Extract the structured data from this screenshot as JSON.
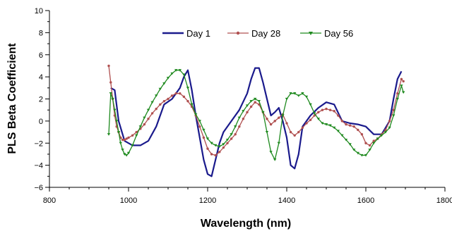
{
  "chart_data": {
    "type": "line",
    "title": "",
    "xlabel": "Wavelength (nm)",
    "ylabel": "PLS Beta Coefficient",
    "xlim": [
      800,
      1800
    ],
    "ylim": [
      -6,
      10
    ],
    "xticks": [
      800,
      1000,
      1200,
      1400,
      1600,
      1800
    ],
    "yticks": [
      -6,
      -4,
      -2,
      0,
      2,
      4,
      6,
      8,
      10
    ],
    "xtick_labels": [
      "800",
      "1000",
      "1200",
      "1400",
      "1600",
      "1800"
    ],
    "ytick_labels": [
      "−6",
      "−4",
      "−2",
      "0",
      "2",
      "4",
      "6",
      "8",
      "10"
    ],
    "grid": false,
    "legend": {
      "placement": "top-right"
    },
    "series": [
      {
        "name": "Day 1",
        "color": "#1a1a8c",
        "marker": "none",
        "x": [
          955,
          965,
          975,
          990,
          1010,
          1030,
          1050,
          1070,
          1090,
          1110,
          1130,
          1140,
          1150,
          1160,
          1170,
          1180,
          1190,
          1200,
          1210,
          1220,
          1230,
          1240,
          1260,
          1280,
          1300,
          1310,
          1320,
          1330,
          1340,
          1350,
          1360,
          1370,
          1380,
          1390,
          1400,
          1410,
          1420,
          1430,
          1440,
          1460,
          1480,
          1500,
          1520,
          1540,
          1560,
          1580,
          1600,
          1620,
          1640,
          1660,
          1670,
          1680,
          1690
        ],
        "y": [
          3.0,
          2.8,
          0.0,
          -1.8,
          -2.2,
          -2.2,
          -1.8,
          -0.5,
          1.5,
          2.0,
          3.0,
          4.0,
          4.6,
          2.8,
          0.5,
          -1.5,
          -3.5,
          -4.8,
          -5.0,
          -3.5,
          -2.0,
          -1.0,
          0.0,
          1.0,
          2.5,
          3.8,
          4.8,
          4.8,
          3.5,
          2.0,
          0.5,
          0.8,
          1.2,
          0.0,
          -1.5,
          -4.0,
          -4.3,
          -3.0,
          -0.5,
          0.5,
          1.2,
          1.7,
          1.5,
          0.0,
          -0.2,
          -0.3,
          -0.5,
          -1.2,
          -1.2,
          0.0,
          2.0,
          3.8,
          4.5
        ]
      },
      {
        "name": "Day 28",
        "color": "#b05050",
        "marker": "circle",
        "x": [
          950,
          955,
          960,
          965,
          970,
          975,
          980,
          985,
          990,
          995,
          1000,
          1010,
          1020,
          1030,
          1040,
          1050,
          1060,
          1070,
          1080,
          1090,
          1100,
          1110,
          1120,
          1130,
          1140,
          1150,
          1160,
          1170,
          1180,
          1190,
          1200,
          1210,
          1220,
          1230,
          1240,
          1250,
          1260,
          1270,
          1280,
          1290,
          1300,
          1310,
          1320,
          1330,
          1340,
          1350,
          1360,
          1370,
          1380,
          1390,
          1400,
          1410,
          1420,
          1430,
          1440,
          1450,
          1460,
          1470,
          1480,
          1490,
          1500,
          1510,
          1520,
          1530,
          1540,
          1550,
          1560,
          1570,
          1580,
          1590,
          1600,
          1610,
          1620,
          1630,
          1640,
          1650,
          1660,
          1670,
          1680,
          1690,
          1695
        ],
        "y": [
          5.0,
          3.5,
          2.0,
          0.5,
          -0.5,
          -1.0,
          -1.5,
          -1.7,
          -1.7,
          -1.6,
          -1.5,
          -1.3,
          -1.0,
          -0.7,
          -0.3,
          0.2,
          0.7,
          1.1,
          1.5,
          1.8,
          2.0,
          2.3,
          2.5,
          2.5,
          2.2,
          1.8,
          1.3,
          0.5,
          -0.5,
          -1.5,
          -2.5,
          -3.0,
          -3.1,
          -2.8,
          -2.4,
          -2.0,
          -1.6,
          -1.2,
          -0.5,
          0.2,
          0.8,
          1.3,
          1.7,
          1.5,
          0.8,
          0.2,
          -0.3,
          0.0,
          0.3,
          0.6,
          -0.2,
          -1.0,
          -1.3,
          -1.0,
          -0.6,
          -0.2,
          0.1,
          0.5,
          0.8,
          1.0,
          1.1,
          1.0,
          0.9,
          0.5,
          0.0,
          -0.3,
          -0.4,
          -0.5,
          -0.8,
          -1.2,
          -2.0,
          -2.2,
          -1.8,
          -1.6,
          -1.2,
          -0.8,
          0.0,
          1.0,
          2.5,
          3.8,
          3.6
        ]
      },
      {
        "name": "Day 56",
        "color": "#1f8a1f",
        "marker": "triangle-down",
        "x": [
          950,
          955,
          960,
          965,
          970,
          975,
          980,
          985,
          990,
          995,
          1000,
          1010,
          1020,
          1030,
          1040,
          1050,
          1060,
          1070,
          1080,
          1090,
          1100,
          1110,
          1120,
          1130,
          1140,
          1150,
          1160,
          1170,
          1180,
          1190,
          1200,
          1210,
          1220,
          1230,
          1240,
          1250,
          1260,
          1270,
          1280,
          1290,
          1300,
          1310,
          1320,
          1330,
          1340,
          1350,
          1360,
          1370,
          1380,
          1390,
          1400,
          1410,
          1420,
          1430,
          1440,
          1450,
          1460,
          1470,
          1480,
          1490,
          1500,
          1510,
          1520,
          1530,
          1540,
          1550,
          1560,
          1570,
          1580,
          1590,
          1600,
          1610,
          1620,
          1630,
          1640,
          1650,
          1660,
          1670,
          1680,
          1690,
          1695
        ],
        "y": [
          -1.2,
          2.5,
          2.0,
          1.0,
          0.0,
          -1.0,
          -2.0,
          -2.6,
          -3.0,
          -3.1,
          -2.9,
          -2.2,
          -1.3,
          -0.5,
          0.3,
          1.0,
          1.7,
          2.3,
          2.9,
          3.4,
          3.9,
          4.3,
          4.6,
          4.6,
          4.2,
          3.0,
          1.5,
          0.6,
          0.0,
          -0.8,
          -1.6,
          -2.0,
          -2.2,
          -2.3,
          -2.1,
          -1.7,
          -1.2,
          -0.5,
          0.3,
          0.9,
          1.4,
          1.8,
          2.0,
          1.8,
          0.8,
          -1.0,
          -2.8,
          -3.5,
          -2.0,
          0.5,
          2.0,
          2.5,
          2.5,
          2.3,
          2.5,
          2.2,
          1.5,
          0.7,
          0.2,
          -0.2,
          -0.3,
          -0.4,
          -0.6,
          -0.9,
          -1.3,
          -1.7,
          -2.1,
          -2.6,
          -2.9,
          -3.1,
          -3.1,
          -2.6,
          -2.0,
          -1.6,
          -1.3,
          -1.0,
          -0.6,
          0.5,
          2.0,
          3.2,
          2.6
        ]
      }
    ]
  }
}
